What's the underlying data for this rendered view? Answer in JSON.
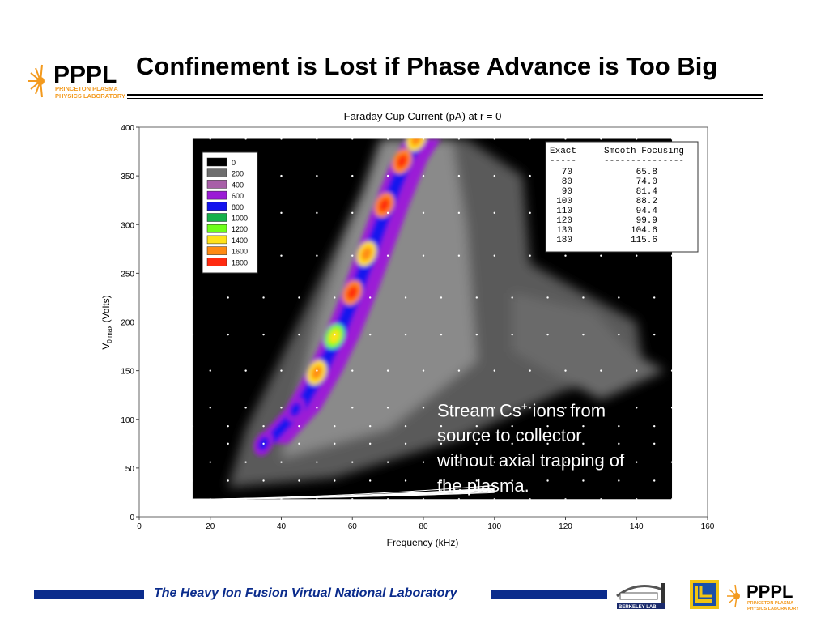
{
  "header": {
    "title": "Confinement is Lost if Phase Advance is Too Big",
    "logo_text": "PPPL",
    "logo_subtext_1": "PRINCETON PLASMA",
    "logo_subtext_2": "PHYSICS LABORATORY"
  },
  "annotation": {
    "line1a": "Stream Cs",
    "line1sup": "+",
    "line1b": " ions from",
    "line2": "source to collector",
    "line3": "without axial trapping of",
    "line4": "the plasma."
  },
  "footer": {
    "text": "The Heavy Ion Fusion Virtual National Laboratory",
    "berkeley_label": "BERKELEY LAB",
    "pppl_small": "PPPL"
  },
  "colors": {
    "footer_blue": "#0b2c8c",
    "logo_orange": "#f39a1e"
  },
  "chart_data": {
    "type": "heatmap",
    "title": "Faraday Cup Current (pA) at r = 0",
    "xlabel": "Frequency (kHz)",
    "ylabel_main": "V",
    "ylabel_sub": "0 max",
    "ylabel_rest": " (Volts)",
    "xlim": [
      0,
      160
    ],
    "ylim": [
      0,
      400
    ],
    "xticks": [
      0,
      20,
      40,
      60,
      80,
      100,
      120,
      140,
      160
    ],
    "yticks": [
      0,
      50,
      100,
      150,
      200,
      250,
      300,
      350,
      400
    ],
    "data_region": {
      "x": [
        15,
        150
      ],
      "y": [
        18,
        388
      ]
    },
    "legend": {
      "position": "top-left",
      "levels": [
        {
          "label": "0",
          "color": "#000000"
        },
        {
          "label": "200",
          "color": "#6e6e6e"
        },
        {
          "label": "400",
          "color": "#a85fa8"
        },
        {
          "label": "600",
          "color": "#9b1bd6"
        },
        {
          "label": "800",
          "color": "#1212ee"
        },
        {
          "label": "1000",
          "color": "#15b04a"
        },
        {
          "label": "1200",
          "color": "#6fff1a"
        },
        {
          "label": "1400",
          "color": "#ffe21a"
        },
        {
          "label": "1600",
          "color": "#ff8a14"
        },
        {
          "label": "1800",
          "color": "#ff2a10"
        }
      ]
    },
    "ridge_points": [
      {
        "x": 35,
        "y": 75,
        "value": 600
      },
      {
        "x": 44,
        "y": 110,
        "value": 700
      },
      {
        "x": 50,
        "y": 148,
        "value": 1450
      },
      {
        "x": 55,
        "y": 185,
        "value": 1250
      },
      {
        "x": 60,
        "y": 230,
        "value": 1600
      },
      {
        "x": 64,
        "y": 270,
        "value": 1450
      },
      {
        "x": 69,
        "y": 320,
        "value": 1750
      },
      {
        "x": 74,
        "y": 365,
        "value": 1650
      },
      {
        "x": 78,
        "y": 388,
        "value": 1500
      }
    ],
    "curves": [
      {
        "label": "180",
        "k": 0.001445
      },
      {
        "label": "130",
        "k": 0.001168
      },
      {
        "label": "120",
        "k": 0.0011
      },
      {
        "label": "110",
        "k": 0.00102
      },
      {
        "label": "100",
        "k": 0.00096
      },
      {
        "label": "90",
        "k": 0.00086
      },
      {
        "label": "80",
        "k": 0.00078
      },
      {
        "label": "70",
        "k": 0.00069
      }
    ],
    "table": {
      "col1": "Exact",
      "col2": "Smooth Focusing",
      "dash1": "-----",
      "dash2": "---------------",
      "rows": [
        [
          "70",
          "65.8"
        ],
        [
          "80",
          "74.0"
        ],
        [
          "90",
          "81.4"
        ],
        [
          "100",
          "88.2"
        ],
        [
          "110",
          "94.4"
        ],
        [
          "120",
          "99.9"
        ],
        [
          "130",
          "104.6"
        ],
        [
          "180",
          "115.6"
        ]
      ]
    },
    "grid_points_x": [
      15,
      20,
      25,
      30,
      35,
      40,
      45,
      50,
      55,
      60,
      65,
      70,
      75,
      80,
      85,
      90,
      95,
      100,
      105,
      110,
      115,
      120,
      125,
      130,
      135,
      140,
      145,
      150
    ],
    "grid_points_y": [
      18,
      37,
      56,
      75,
      93,
      112,
      150,
      187,
      225,
      268,
      312,
      350,
      388
    ]
  }
}
